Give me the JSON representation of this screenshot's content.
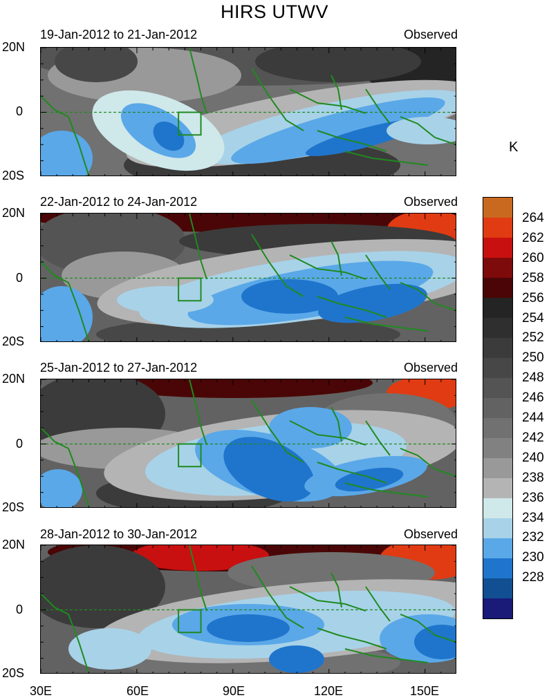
{
  "title": "HIRS UTWV",
  "panels": [
    {
      "date_range": "19-Jan-2012 to 21-Jan-2012",
      "tag": "Observed"
    },
    {
      "date_range": "22-Jan-2012 to 24-Jan-2012",
      "tag": "Observed"
    },
    {
      "date_range": "25-Jan-2012 to 27-Jan-2012",
      "tag": "Observed"
    },
    {
      "date_range": "28-Jan-2012 to 30-Jan-2012",
      "tag": "Observed"
    }
  ],
  "y_axis": {
    "north": "20N",
    "equator": "0",
    "south": "20S"
  },
  "x_axis": {
    "ticks": [
      "30E",
      "60E",
      "90E",
      "120E",
      "150E"
    ]
  },
  "colorbar": {
    "unit": "K",
    "labels": [
      "264",
      "262",
      "260",
      "258",
      "256",
      "254",
      "252",
      "250",
      "248",
      "246",
      "244",
      "242",
      "240",
      "238",
      "236",
      "234",
      "232",
      "230",
      "228"
    ],
    "colors": [
      "#c9691f",
      "#e03b12",
      "#c81010",
      "#7d0b0b",
      "#4a0606",
      "#242424",
      "#2f2f2f",
      "#3b3b3b",
      "#474747",
      "#545454",
      "#626262",
      "#717171",
      "#818181",
      "#999999",
      "#b4b4b4",
      "#cfe8ea",
      "#a8d2e8",
      "#5aa8e8",
      "#1f75cc",
      "#114f92",
      "#1a1a78"
    ]
  },
  "region_box": {
    "lon_min": 73,
    "lon_max": 80,
    "lat_min": -7,
    "lat_max": 0
  }
}
